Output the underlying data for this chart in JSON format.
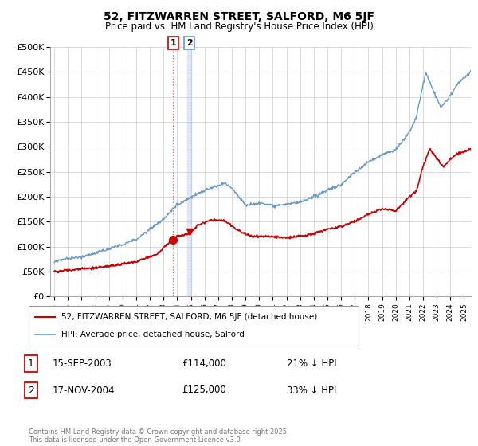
{
  "title": "52, FITZWARREN STREET, SALFORD, M6 5JF",
  "subtitle": "Price paid vs. HM Land Registry's House Price Index (HPI)",
  "legend_line1": "52, FITZWARREN STREET, SALFORD, M6 5JF (detached house)",
  "legend_line2": "HPI: Average price, detached house, Salford",
  "transaction1_label": "1",
  "transaction1_date": "15-SEP-2003",
  "transaction1_price": "£114,000",
  "transaction1_hpi": "21% ↓ HPI",
  "transaction1_year": 2003.71,
  "transaction1_value": 114000,
  "transaction2_label": "2",
  "transaction2_date": "17-NOV-2004",
  "transaction2_price": "£125,000",
  "transaction2_hpi": "33% ↓ HPI",
  "transaction2_year": 2004.88,
  "transaction2_value": 125000,
  "red_color": "#cc0000",
  "blue_color": "#6699cc",
  "vline1_color": "#dd4444",
  "vline2_color": "#aabbdd",
  "grid_color": "#cccccc",
  "background_color": "#ffffff",
  "ylim": [
    0,
    500000
  ],
  "xlim": [
    1994.7,
    2025.5
  ],
  "footnote": "Contains HM Land Registry data © Crown copyright and database right 2025.\nThis data is licensed under the Open Government Licence v3.0."
}
